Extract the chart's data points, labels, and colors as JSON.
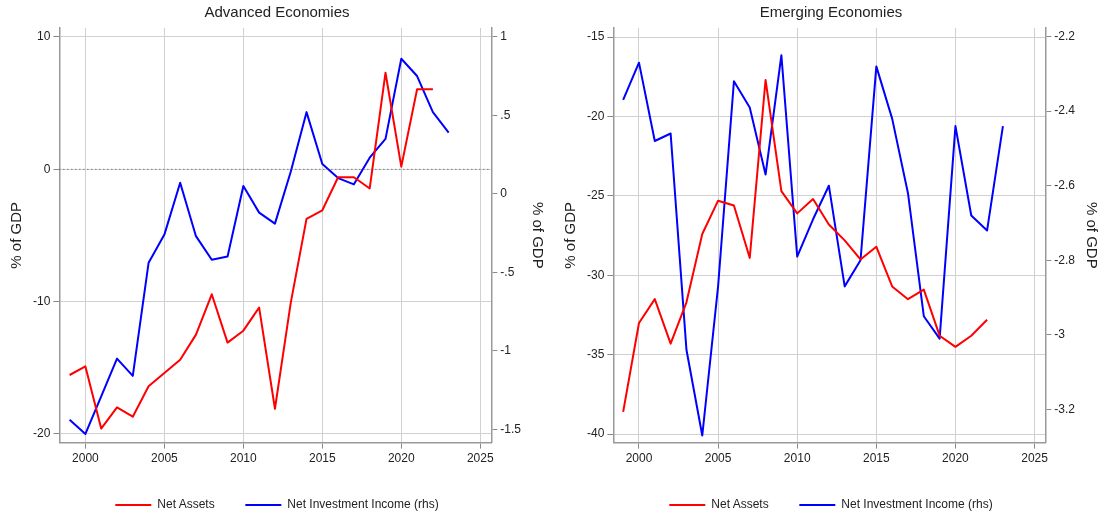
{
  "chart_data": [
    {
      "type": "line",
      "title": "Advanced Economies",
      "ylabel": "% of GDP",
      "y2label": "% of GDP",
      "x": [
        1999,
        2000,
        2001,
        2002,
        2003,
        2004,
        2005,
        2006,
        2007,
        2008,
        2009,
        2010,
        2011,
        2012,
        2013,
        2014,
        2015,
        2016,
        2017,
        2018,
        2019,
        2020,
        2021,
        2022,
        2023
      ],
      "xlim": [
        1998.35,
        2025.7
      ],
      "xticks": [
        2000,
        2005,
        2010,
        2015,
        2020,
        2025
      ],
      "ylim": [
        -20.66,
        10.68
      ],
      "yticks": [
        -20,
        -10,
        0,
        10
      ],
      "y2lim": [
        -1.585,
        1.056
      ],
      "y2ticks": [
        {
          "value": -1.5,
          "label": "-1.5"
        },
        {
          "value": -1,
          "label": "-1"
        },
        {
          "value": -0.5,
          "label": "-.5"
        },
        {
          "value": 0,
          "label": "0"
        },
        {
          "value": 0.5,
          "label": ".5"
        },
        {
          "value": 1,
          "label": "1"
        }
      ],
      "series": [
        {
          "name": "Net Assets",
          "color": "#ff0000",
          "values": [
            -15.55,
            -14.9,
            -19.6,
            -18.0,
            -18.7,
            -16.4,
            -15.4,
            -14.4,
            -12.5,
            -9.45,
            -13.1,
            -12.2,
            -10.45,
            -18.1,
            -10.1,
            -3.75,
            -3.1,
            -0.6,
            -0.6,
            -1.45,
            7.3,
            0.2,
            6.05,
            6.05,
            null
          ]
        },
        {
          "name": "Net Investment Income (rhs)",
          "color": "#0000ff",
          "axis": "y2",
          "values": [
            -1.44,
            -1.53,
            -1.29,
            -1.05,
            -1.16,
            -0.44,
            -0.26,
            0.07,
            -0.27,
            -0.42,
            -0.4,
            0.05,
            -0.12,
            -0.19,
            0.14,
            0.52,
            0.19,
            0.1,
            0.06,
            0.23,
            0.35,
            0.86,
            0.75,
            0.52,
            0.39
          ]
        }
      ],
      "ref_lines": [
        {
          "axis": "y",
          "value": 0,
          "color": "#555555",
          "line_style": "dotted"
        }
      ],
      "grid": true,
      "legend": "bottom"
    },
    {
      "type": "line",
      "title": "Emerging Economies",
      "ylabel": "% of GDP",
      "y2label": "% of GDP",
      "x": [
        1999,
        2000,
        2001,
        2002,
        2003,
        2004,
        2005,
        2006,
        2007,
        2008,
        2009,
        2010,
        2011,
        2012,
        2013,
        2014,
        2015,
        2016,
        2017,
        2018,
        2019,
        2020,
        2021,
        2022,
        2023
      ],
      "xlim": [
        1998.38,
        2025.68
      ],
      "xticks": [
        2000,
        2005,
        2010,
        2015,
        2020,
        2025
      ],
      "ylim": [
        -40.53,
        -14.43
      ],
      "yticks": [
        -40,
        -35,
        -30,
        -25,
        -20,
        -15
      ],
      "y2lim": [
        -3.289,
        -2.177
      ],
      "y2ticks": [
        -3.2,
        -3,
        -2.8,
        -2.6,
        -2.4,
        -2.2
      ],
      "series": [
        {
          "name": "Net Assets",
          "color": "#ff0000",
          "values": [
            -38.6,
            -33.0,
            -31.5,
            -34.3,
            -31.7,
            -27.4,
            -25.3,
            -25.6,
            -28.9,
            -17.7,
            -24.7,
            -26.1,
            -25.2,
            -26.8,
            -27.8,
            -29.0,
            -28.2,
            -30.7,
            -31.5,
            -30.9,
            -33.8,
            -34.5,
            -33.8,
            -32.8,
            null
          ]
        },
        {
          "name": "Net Investment Income (rhs)",
          "color": "#0000ff",
          "axis": "y2",
          "values": [
            -2.37,
            -2.27,
            -2.48,
            -2.46,
            -3.04,
            -3.27,
            -2.87,
            -2.32,
            -2.39,
            -2.57,
            -2.25,
            -2.79,
            -2.69,
            -2.6,
            -2.87,
            -2.8,
            -2.28,
            -2.42,
            -2.62,
            -2.95,
            -3.01,
            -2.44,
            -2.68,
            -2.72,
            -2.44
          ]
        }
      ],
      "grid": true,
      "legend": "bottom"
    }
  ]
}
